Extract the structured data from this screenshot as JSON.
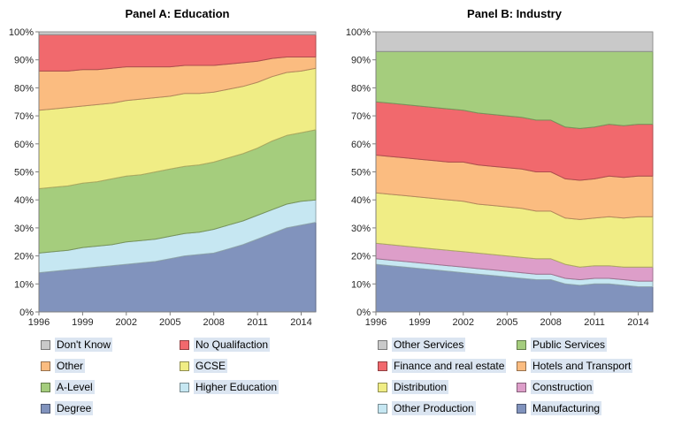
{
  "chart_data": [
    {
      "type": "area",
      "stacked": true,
      "title": "Panel A: Education",
      "xlabel": "",
      "ylabel": "",
      "x": [
        1996,
        1997,
        1998,
        1999,
        2000,
        2001,
        2002,
        2003,
        2004,
        2005,
        2006,
        2007,
        2008,
        2009,
        2010,
        2011,
        2012,
        2013,
        2014,
        2015
      ],
      "xticks": [
        1996,
        1999,
        2002,
        2005,
        2008,
        2011,
        2014
      ],
      "ylim": [
        0,
        100
      ],
      "ytick_step": 10,
      "ytick_suffix": "%",
      "grid": true,
      "legend_position": "bottom",
      "series": [
        {
          "name": "Degree",
          "color": "#8193BD",
          "values": [
            14,
            14.5,
            15,
            15.5,
            16,
            16.5,
            17,
            17.5,
            18,
            19,
            20,
            20.5,
            21,
            22.5,
            24,
            26,
            28,
            30,
            31,
            32
          ]
        },
        {
          "name": "Higher Education",
          "color": "#C6E7F2",
          "values": [
            7,
            7,
            7,
            7.5,
            7.5,
            7.5,
            8,
            8,
            8,
            8,
            8,
            8,
            8.5,
            8.5,
            8.5,
            8.5,
            8.5,
            8.5,
            8.5,
            8
          ]
        },
        {
          "name": "A-Level",
          "color": "#A5CD7D",
          "values": [
            23,
            23,
            23,
            23,
            23,
            23.5,
            23.5,
            23.5,
            24,
            24,
            24,
            24,
            24,
            24,
            24,
            24,
            24.5,
            24.5,
            24.5,
            25
          ]
        },
        {
          "name": "GCSE",
          "color": "#F0ED85",
          "values": [
            28,
            28,
            28,
            27.5,
            27.5,
            27,
            27,
            27,
            26.5,
            26,
            26,
            25.5,
            25,
            24.5,
            24,
            23.5,
            23,
            22.5,
            22,
            22
          ]
        },
        {
          "name": "Other",
          "color": "#FBBC80",
          "values": [
            14,
            13.5,
            13,
            13,
            12.5,
            12.5,
            12,
            11.5,
            11,
            10.5,
            10,
            10,
            9.5,
            9,
            8.5,
            7.5,
            6.5,
            5.5,
            5,
            4
          ]
        },
        {
          "name": "No Qualifaction",
          "color": "#F1696D",
          "values": [
            13,
            13,
            13,
            12.5,
            12.5,
            12,
            11.5,
            11.5,
            11.5,
            11.5,
            11,
            11,
            11,
            10.5,
            10,
            9.5,
            8.5,
            8,
            8,
            8
          ]
        },
        {
          "name": "Don't Know",
          "color": "#C9C9C9",
          "values": [
            1,
            1,
            1,
            1,
            1,
            1,
            1,
            1,
            1,
            1,
            1,
            1,
            1,
            1,
            1,
            1,
            1,
            1,
            1,
            1
          ]
        }
      ],
      "legend_order": [
        "Don't Know",
        "No Qualifaction",
        "Other",
        "GCSE",
        "A-Level",
        "Higher Education",
        "Degree"
      ]
    },
    {
      "type": "area",
      "stacked": true,
      "title": "Panel B: Industry",
      "xlabel": "",
      "ylabel": "",
      "x": [
        1996,
        1997,
        1998,
        1999,
        2000,
        2001,
        2002,
        2003,
        2004,
        2005,
        2006,
        2007,
        2008,
        2009,
        2010,
        2011,
        2012,
        2013,
        2014,
        2015
      ],
      "xticks": [
        1996,
        1999,
        2002,
        2005,
        2008,
        2011,
        2014
      ],
      "ylim": [
        0,
        100
      ],
      "ytick_step": 10,
      "ytick_suffix": "%",
      "grid": true,
      "legend_position": "bottom",
      "series": [
        {
          "name": "Manufacturing",
          "color": "#8193BD",
          "values": [
            17,
            16.5,
            16,
            15.5,
            15,
            14.5,
            14,
            13.5,
            13,
            12.5,
            12,
            11.5,
            11.5,
            10,
            9.5,
            10,
            10,
            9.5,
            9,
            9
          ]
        },
        {
          "name": "Other Production",
          "color": "#C6E7F2",
          "values": [
            2,
            2,
            2,
            2,
            2,
            2,
            2,
            2,
            2,
            2,
            2,
            2,
            2,
            2,
            2,
            2,
            2,
            2,
            2,
            2
          ]
        },
        {
          "name": "Construction",
          "color": "#DD9EC9",
          "values": [
            5.5,
            5.5,
            5.5,
            5.5,
            5.5,
            5.5,
            5.5,
            5.5,
            5.5,
            5.5,
            5.5,
            5.5,
            5.5,
            5,
            4.5,
            4.5,
            4.5,
            4.5,
            5,
            5
          ]
        },
        {
          "name": "Distribution",
          "color": "#F0ED85",
          "values": [
            18,
            18,
            18,
            18,
            18,
            18,
            18,
            17.5,
            17.5,
            17.5,
            17.5,
            17,
            17,
            16.5,
            17,
            17,
            17.5,
            17.5,
            18,
            18
          ]
        },
        {
          "name": "Hotels and Transport",
          "color": "#FBBC80",
          "values": [
            13.5,
            13.5,
            13.5,
            13.5,
            13.5,
            13.5,
            14,
            14,
            14,
            14,
            14,
            14,
            14,
            14,
            14,
            14,
            14.5,
            14.5,
            14.5,
            14.5
          ]
        },
        {
          "name": "Finance and real estate",
          "color": "#F1696D",
          "values": [
            19,
            19,
            19,
            19,
            19,
            19,
            18.5,
            18.5,
            18.5,
            18.5,
            18.5,
            18.5,
            18.5,
            18.5,
            18.5,
            18.5,
            18.5,
            18.5,
            18.5,
            18.5
          ]
        },
        {
          "name": "Public Services",
          "color": "#A5CD7D",
          "values": [
            18,
            18.5,
            19,
            19.5,
            20,
            20.5,
            21,
            22,
            22.5,
            23,
            23.5,
            24.5,
            24.5,
            27,
            27.5,
            27,
            26,
            26.5,
            26,
            26
          ]
        },
        {
          "name": "Other Services",
          "color": "#C9C9C9",
          "values": [
            7,
            7,
            7,
            7,
            7,
            7,
            7,
            7,
            7,
            7,
            7,
            7,
            7,
            7,
            7,
            7,
            7,
            7,
            7,
            7
          ]
        }
      ],
      "legend_order": [
        "Other Services",
        "Public Services",
        "Finance and real estate",
        "Hotels and Transport",
        "Distribution",
        "Construction",
        "Other Production",
        "Manufacturing"
      ]
    }
  ],
  "style": {
    "legend_highlight": "#dbe5f1",
    "axis_color": "#808080",
    "gridline_color": "#d9d9d9",
    "tick_label_color": "#262626"
  }
}
